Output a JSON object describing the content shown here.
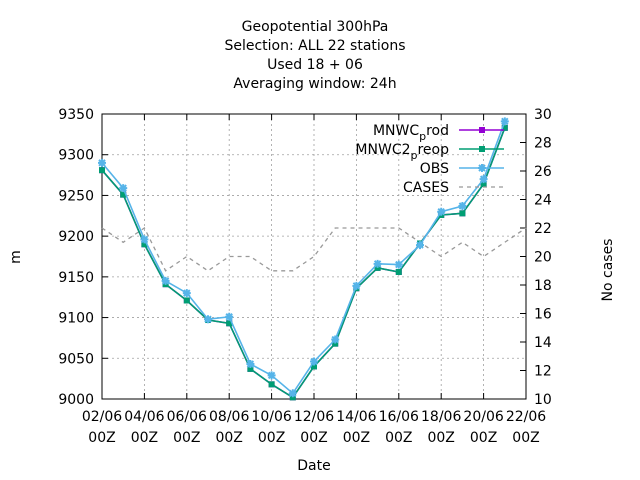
{
  "chart_data": {
    "type": "line",
    "title_lines": [
      "Geopotential 300hPa",
      "Selection: ALL     22 stations",
      "Used  18 + 06",
      "Averaging window: 24h"
    ],
    "xlabel": "Date",
    "ylabel": "m",
    "y2label": "No cases",
    "x_ticks": [
      "02/06 00Z",
      "04/06 00Z",
      "06/06 00Z",
      "08/06 00Z",
      "10/06 00Z",
      "12/06 00Z",
      "14/06 00Z",
      "16/06 00Z",
      "18/06 00Z",
      "20/06 00Z",
      "22/06 00Z"
    ],
    "x_range": [
      0,
      20
    ],
    "ylim": [
      9000,
      9350
    ],
    "y_ticks": [
      9000,
      9050,
      9100,
      9150,
      9200,
      9250,
      9300,
      9350
    ],
    "y2lim": [
      10,
      30
    ],
    "y2_ticks": [
      10,
      12,
      14,
      16,
      18,
      20,
      22,
      24,
      26,
      28,
      30
    ],
    "legend_position": "top-right",
    "x": [
      0,
      1,
      2,
      3,
      4,
      5,
      6,
      7,
      8,
      9,
      10,
      11,
      12,
      13,
      14,
      15,
      16,
      17,
      18,
      19
    ],
    "series": [
      {
        "name": "MNWC_prod",
        "color": "#9400d3",
        "axis": "y",
        "values": [
          9281,
          9251,
          9190,
          9141,
          9121,
          9097,
          9093,
          9037,
          9018,
          9002,
          9040,
          9068,
          9136,
          9161,
          9156,
          9191,
          9226,
          9228,
          9264,
          9333
        ]
      },
      {
        "name": "MNWC2_preop",
        "color": "#009e73",
        "axis": "y",
        "values": [
          9281,
          9251,
          9190,
          9141,
          9121,
          9097,
          9093,
          9037,
          9018,
          9002,
          9040,
          9068,
          9136,
          9161,
          9156,
          9191,
          9226,
          9228,
          9264,
          9333
        ]
      },
      {
        "name": "OBS",
        "color": "#56b4e9",
        "axis": "y",
        "values": [
          9290,
          9259,
          9196,
          9145,
          9130,
          9098,
          9101,
          9043,
          9029,
          9007,
          9046,
          9073,
          9139,
          9166,
          9165,
          9189,
          9230,
          9237,
          9270,
          9341
        ]
      },
      {
        "name": "CASES",
        "color": "#999999",
        "axis": "y2",
        "dashed": true,
        "x": [
          0,
          1,
          2,
          3,
          4,
          5,
          6,
          7,
          8,
          9,
          10,
          11,
          12,
          13,
          14,
          15,
          16,
          17,
          18,
          19,
          20
        ],
        "values": [
          22,
          21,
          22,
          19,
          20,
          19,
          20,
          20,
          19,
          19,
          20,
          22,
          22,
          22,
          22,
          21,
          20,
          21,
          20,
          21,
          22
        ]
      }
    ],
    "legend": [
      {
        "label": "MNWC",
        "sub": "p",
        "rest": "rod"
      },
      {
        "label": "MNWC2",
        "sub": "p",
        "rest": "reop"
      },
      {
        "label": "OBS",
        "sub": "",
        "rest": ""
      },
      {
        "label": "CASES",
        "sub": "",
        "rest": ""
      }
    ]
  }
}
